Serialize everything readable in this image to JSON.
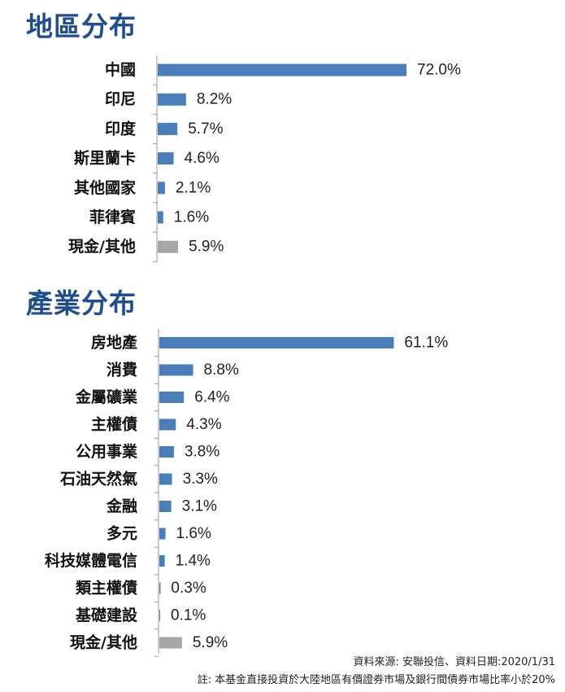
{
  "region_title": "地區分布",
  "industry_title": "產業分布",
  "chart_data": [
    {
      "type": "bar",
      "orientation": "horizontal",
      "title": "地區分布",
      "categories": [
        "中國",
        "印尼",
        "印度",
        "斯里蘭卡",
        "其他國家",
        "菲律賓",
        "現金/其他"
      ],
      "values": [
        72.0,
        8.2,
        5.7,
        4.6,
        2.1,
        1.6,
        5.9
      ],
      "value_labels": [
        "72.0%",
        "8.2%",
        "5.7%",
        "4.6%",
        "2.1%",
        "1.6%",
        "5.9%"
      ],
      "bar_colors": [
        "#4a7ebb",
        "#4a7ebb",
        "#4a7ebb",
        "#4a7ebb",
        "#4a7ebb",
        "#4a7ebb",
        "#a6a6a6"
      ],
      "unit": "%",
      "xlim": [
        0,
        100
      ],
      "grid": false
    },
    {
      "type": "bar",
      "orientation": "horizontal",
      "title": "產業分布",
      "categories": [
        "房地產",
        "消費",
        "金屬礦業",
        "主權債",
        "公用事業",
        "石油天然氣",
        "金融",
        "多元",
        "科技媒體電信",
        "類主權債",
        "基礎建設",
        "現金/其他"
      ],
      "values": [
        61.1,
        8.8,
        6.4,
        4.3,
        3.8,
        3.3,
        3.1,
        1.6,
        1.4,
        0.3,
        0.1,
        5.9
      ],
      "value_labels": [
        "61.1%",
        "8.8%",
        "6.4%",
        "4.3%",
        "3.8%",
        "3.3%",
        "3.1%",
        "1.6%",
        "1.4%",
        "0.3%",
        "0.1%",
        "5.9%"
      ],
      "bar_colors": [
        "#4a7ebb",
        "#4a7ebb",
        "#4a7ebb",
        "#4a7ebb",
        "#4a7ebb",
        "#4a7ebb",
        "#4a7ebb",
        "#4a7ebb",
        "#4a7ebb",
        "#4a7ebb",
        "#4a7ebb",
        "#a6a6a6"
      ],
      "unit": "%",
      "xlim": [
        0,
        100
      ],
      "grid": false
    }
  ],
  "footer": {
    "source": "資料來源: 安聯投信、資料日期:2020/1/31",
    "note": "註: 本基金直接投資於大陸地區有價證券市場及銀行間債券市場比率小於20%"
  }
}
